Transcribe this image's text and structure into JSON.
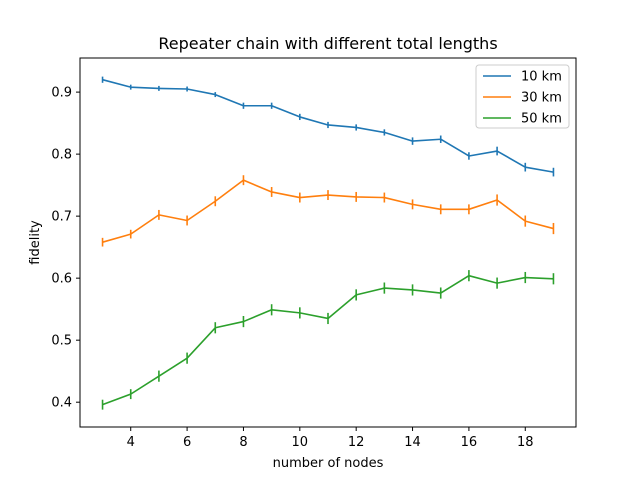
{
  "chart_data": {
    "type": "line",
    "title": "Repeater chain with different total lengths",
    "xlabel": "number of nodes",
    "ylabel": "fidelity",
    "xlim": [
      2.2,
      19.8
    ],
    "ylim": [
      0.36,
      0.955
    ],
    "xticks": [
      4,
      6,
      8,
      10,
      12,
      14,
      16,
      18
    ],
    "yticks": [
      0.4,
      0.5,
      0.6,
      0.7,
      0.8,
      0.9
    ],
    "grid": false,
    "legend_position": "top-right",
    "x": [
      3,
      4,
      5,
      6,
      7,
      8,
      9,
      10,
      11,
      12,
      13,
      14,
      15,
      16,
      17,
      18,
      19
    ],
    "series": [
      {
        "name": "10 km",
        "color": "#1f77b4",
        "values": [
          0.92,
          0.908,
          0.906,
          0.905,
          0.896,
          0.878,
          0.878,
          0.86,
          0.847,
          0.843,
          0.835,
          0.821,
          0.824,
          0.797,
          0.805,
          0.779,
          0.771
        ],
        "errors": [
          0.005,
          0.004,
          0.004,
          0.004,
          0.004,
          0.005,
          0.005,
          0.005,
          0.005,
          0.005,
          0.005,
          0.006,
          0.006,
          0.006,
          0.007,
          0.007,
          0.007
        ]
      },
      {
        "name": "30 km",
        "color": "#ff7f0e",
        "values": [
          0.658,
          0.671,
          0.702,
          0.693,
          0.724,
          0.758,
          0.739,
          0.73,
          0.734,
          0.731,
          0.73,
          0.719,
          0.711,
          0.711,
          0.726,
          0.692,
          0.68
        ],
        "errors": [
          0.007,
          0.007,
          0.008,
          0.008,
          0.008,
          0.008,
          0.008,
          0.008,
          0.008,
          0.008,
          0.008,
          0.008,
          0.008,
          0.008,
          0.009,
          0.009,
          0.009
        ]
      },
      {
        "name": "50 km",
        "color": "#2ca02c",
        "values": [
          0.396,
          0.413,
          0.442,
          0.471,
          0.52,
          0.53,
          0.549,
          0.544,
          0.535,
          0.573,
          0.584,
          0.581,
          0.576,
          0.604,
          0.592,
          0.601,
          0.599
        ],
        "errors": [
          0.008,
          0.008,
          0.009,
          0.009,
          0.009,
          0.009,
          0.009,
          0.009,
          0.009,
          0.009,
          0.009,
          0.009,
          0.009,
          0.009,
          0.009,
          0.009,
          0.009
        ]
      }
    ]
  }
}
